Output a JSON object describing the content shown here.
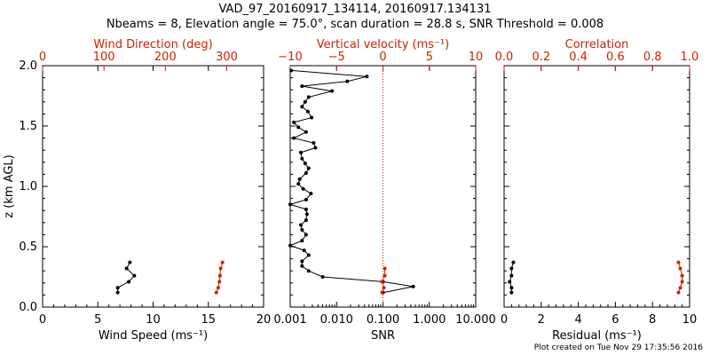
{
  "title_line1": "VAD_97_20160917_134114, 20160917.134131",
  "title_line2": "Nbeams = 8, Elevation angle = 75.0°, scan duration = 28.8 s, SNR Threshold = 0.008",
  "footer": "Plot created on Tue Nov 29 17:35:56 2016",
  "colors": {
    "primary": "#000000",
    "secondary": "#cc2200"
  },
  "chart_data": [
    {
      "type": "line",
      "ylabel": "z (km AGL)",
      "ylim": [
        0,
        2.0
      ],
      "yticks": [
        "0.0",
        "0.5",
        "1.0",
        "1.5",
        "2.0"
      ],
      "bottom_axis": {
        "label": "Wind Speed (ms⁻¹)",
        "range": [
          0,
          20
        ],
        "ticks": [
          "0",
          "5",
          "10",
          "15",
          "20"
        ]
      },
      "top_axis": {
        "label": "Wind Direction (deg)",
        "range": [
          0,
          360
        ],
        "ticks": [
          "0",
          "100",
          "200",
          "300"
        ]
      },
      "series": [
        {
          "axis": "bottom",
          "color": "primary",
          "x": [
            6.8,
            6.8,
            7.8,
            8.3,
            7.6,
            7.9
          ],
          "y": [
            0.12,
            0.16,
            0.21,
            0.26,
            0.32,
            0.37
          ]
        },
        {
          "axis": "top",
          "color": "secondary",
          "x": [
            283,
            286,
            288,
            289,
            290,
            293
          ],
          "y": [
            0.12,
            0.16,
            0.21,
            0.26,
            0.32,
            0.37
          ]
        }
      ]
    },
    {
      "type": "line",
      "bottom_axis": {
        "label": "SNR",
        "scale": "log",
        "range": [
          0.001,
          10
        ],
        "ticks": [
          "0.001",
          "0.010",
          "0.100",
          "1.000",
          "10.000"
        ]
      },
      "top_axis": {
        "label": "Vertical velocity (ms⁻¹)",
        "range": [
          -10,
          10
        ],
        "ticks": [
          "−10",
          "−5",
          "0",
          "5",
          "10"
        ]
      },
      "reference_line": {
        "axis": "top",
        "x": 0,
        "style": "dotted",
        "color": "secondary"
      },
      "series": [
        {
          "axis": "bottom",
          "color": "primary",
          "x": [
            0.1,
            0.45,
            0.1,
            0.005,
            0.0025,
            0.0018,
            0.0018,
            0.0025,
            0.002,
            0.001,
            0.0018,
            0.0022,
            0.0018,
            0.0017,
            0.0022,
            0.0023,
            0.0022,
            0.001,
            0.0022,
            0.0028,
            0.0019,
            0.0015,
            0.0016,
            0.0022,
            0.0025,
            0.0021,
            0.0018,
            0.0017,
            0.0035,
            0.0032,
            0.0012,
            0.0022,
            0.0015,
            0.0012,
            0.0029,
            0.0024,
            0.0018,
            0.0021,
            0.0025,
            0.008,
            0.0018,
            0.017,
            0.045,
            0.00105
          ],
          "y": [
            0.12,
            0.17,
            0.21,
            0.25,
            0.3,
            0.34,
            0.38,
            0.43,
            0.47,
            0.51,
            0.55,
            0.6,
            0.64,
            0.68,
            0.72,
            0.77,
            0.81,
            0.85,
            0.89,
            0.94,
            0.98,
            1.02,
            1.06,
            1.11,
            1.15,
            1.19,
            1.23,
            1.28,
            1.32,
            1.36,
            1.4,
            1.45,
            1.49,
            1.53,
            1.57,
            1.62,
            1.66,
            1.7,
            1.74,
            1.79,
            1.83,
            1.87,
            1.91,
            1.96
          ]
        },
        {
          "axis": "top",
          "color": "secondary",
          "x": [
            -0.1,
            0.1,
            -0.1,
            0.2,
            0.2
          ],
          "y": [
            0.12,
            0.16,
            0.21,
            0.26,
            0.32
          ]
        }
      ]
    },
    {
      "type": "line",
      "bottom_axis": {
        "label": "Residual (ms⁻¹)",
        "range": [
          0,
          10
        ],
        "ticks": [
          "0",
          "2",
          "4",
          "6",
          "8",
          "10"
        ]
      },
      "top_axis": {
        "label": "Correlation",
        "range": [
          0,
          1.0
        ],
        "ticks": [
          "0.0",
          "0.2",
          "0.4",
          "0.6",
          "0.8",
          "1.0"
        ]
      },
      "series": [
        {
          "axis": "bottom",
          "color": "primary",
          "x": [
            0.4,
            0.4,
            0.3,
            0.4,
            0.4,
            0.5
          ],
          "y": [
            0.12,
            0.16,
            0.21,
            0.26,
            0.32,
            0.37
          ]
        },
        {
          "axis": "top",
          "color": "secondary",
          "x": [
            0.94,
            0.95,
            0.96,
            0.96,
            0.95,
            0.94
          ],
          "y": [
            0.12,
            0.16,
            0.21,
            0.26,
            0.32,
            0.37
          ]
        }
      ]
    }
  ]
}
